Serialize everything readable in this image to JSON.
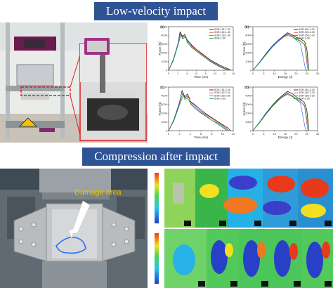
{
  "sections": {
    "impact_title": "Low-velocity impact",
    "cai_title": "Compression after impact"
  },
  "photo_labels": {
    "damage_area": "Damage area"
  },
  "colors": {
    "banner": "#2f5496",
    "arrow": "#ffffff",
    "callout": "#e11d1d",
    "damage_outline": "#2b6cff",
    "series": [
      "#000000",
      "#ff2b2b",
      "#2f6bff",
      "#1fa21f"
    ]
  },
  "chart_data": [
    {
      "panel": "(a)",
      "type": "line",
      "xlabel": "Time (ms)",
      "ylabel": "Force (N)",
      "xlim": [
        0,
        14
      ],
      "ylim": [
        0,
        5000
      ],
      "xticks": [
        "0",
        "2",
        "4",
        "6",
        "8",
        "10",
        "12",
        "14"
      ],
      "yticks": [
        "0",
        "1000",
        "2000",
        "3000",
        "4000",
        "5000"
      ],
      "legend": [
        "SGR-151-1-30",
        "SGR-152-1-30",
        "SGR-153-1-30",
        "SGR-1-30"
      ],
      "series": [
        {
          "x": [
            0,
            1,
            2,
            2.5,
            3,
            3.5,
            4,
            5,
            6,
            7,
            8,
            9,
            10,
            11,
            12,
            13,
            13.5
          ],
          "y": [
            0,
            1200,
            3000,
            4400,
            3900,
            4100,
            3500,
            2900,
            2400,
            2000,
            1600,
            1200,
            900,
            600,
            350,
            150,
            0
          ]
        },
        {
          "x": [
            0,
            1,
            2,
            2.6,
            3,
            3.6,
            4,
            5,
            6,
            7,
            8,
            9,
            10,
            11,
            12,
            13.3
          ],
          "y": [
            0,
            1100,
            2900,
            4200,
            3700,
            3900,
            3300,
            2800,
            2300,
            1900,
            1500,
            1100,
            800,
            500,
            250,
            0
          ]
        },
        {
          "x": [
            0,
            1,
            2,
            2.4,
            3,
            3.4,
            4,
            5,
            6,
            7,
            8,
            9,
            10,
            11,
            12.8
          ],
          "y": [
            0,
            1150,
            2950,
            4300,
            3800,
            4000,
            3400,
            2700,
            2200,
            1800,
            1400,
            1000,
            700,
            400,
            0
          ]
        },
        {
          "x": [
            0,
            1,
            2,
            2.7,
            3,
            3.8,
            4,
            5,
            6,
            7,
            8,
            9,
            10,
            11,
            12,
            13
          ],
          "y": [
            0,
            1050,
            2800,
            4100,
            3600,
            3850,
            3200,
            2600,
            2200,
            1800,
            1400,
            1050,
            750,
            450,
            200,
            0
          ]
        }
      ]
    },
    {
      "panel": "(b)",
      "type": "line",
      "xlabel": "Energy (J)",
      "ylabel": "Force (N)",
      "xlim": [
        0,
        30
      ],
      "ylim": [
        0,
        5000
      ],
      "xticks": [
        "0",
        "5",
        "10",
        "15",
        "20",
        "25",
        "30"
      ],
      "yticks": [
        "0",
        "1000",
        "2000",
        "3000",
        "4000",
        "5000"
      ],
      "legend": [
        "SGR-151-1-30",
        "SGR-152-1-30",
        "SGR-153-1-30",
        "SGR-1-30"
      ],
      "series": [
        {
          "x": [
            0,
            3,
            6,
            9,
            12,
            14,
            16,
            18,
            20,
            22,
            24,
            25,
            26
          ],
          "y": [
            0,
            900,
            1900,
            2800,
            3500,
            3900,
            4300,
            4100,
            3800,
            3600,
            3300,
            2500,
            0
          ]
        },
        {
          "x": [
            0,
            3,
            6,
            9,
            12,
            14,
            16,
            18,
            20,
            22,
            24,
            25.5
          ],
          "y": [
            0,
            850,
            1800,
            2700,
            3400,
            3800,
            4100,
            4000,
            3600,
            3400,
            2900,
            0
          ]
        },
        {
          "x": [
            0,
            3,
            6,
            9,
            12,
            14,
            16,
            18,
            20,
            22,
            24.5
          ],
          "y": [
            0,
            880,
            1850,
            2750,
            3450,
            3850,
            4200,
            3900,
            3500,
            3100,
            0
          ]
        },
        {
          "x": [
            0,
            3,
            6,
            9,
            12,
            14,
            16,
            18,
            20,
            22,
            24,
            26
          ],
          "y": [
            0,
            820,
            1750,
            2650,
            3350,
            3750,
            4000,
            3850,
            3550,
            3350,
            3000,
            0
          ]
        }
      ]
    },
    {
      "panel": "(c)",
      "type": "line",
      "xlabel": "Time (ms)",
      "ylabel": "Force (N)",
      "xlim": [
        0,
        12
      ],
      "ylim": [
        0,
        5000
      ],
      "xticks": [
        "0",
        "2",
        "4",
        "6",
        "8",
        "10",
        "12"
      ],
      "yticks": [
        "0",
        "1000",
        "2000",
        "3000",
        "4000",
        "5000"
      ],
      "legend": [
        "SGR-151-2-30",
        "SGR-152-2-30",
        "SGR-153-2-30",
        "SGR-2-30"
      ],
      "series": [
        {
          "x": [
            0,
            1,
            2,
            2.5,
            3,
            3.5,
            4,
            5,
            6,
            7,
            8,
            9,
            10,
            11,
            11.5
          ],
          "y": [
            0,
            1300,
            3200,
            4600,
            3900,
            4200,
            3400,
            2900,
            2400,
            1900,
            1500,
            1100,
            700,
            300,
            0
          ]
        },
        {
          "x": [
            0,
            1,
            2,
            2.6,
            3,
            3.7,
            4,
            5,
            6,
            7,
            8,
            9,
            10,
            11.2
          ],
          "y": [
            0,
            1200,
            3000,
            4300,
            3800,
            4000,
            3300,
            2800,
            2200,
            1800,
            1400,
            1000,
            600,
            0
          ]
        },
        {
          "x": [
            0,
            1,
            2,
            2.4,
            3,
            3.4,
            4,
            5,
            6,
            7,
            8,
            9,
            10.8
          ],
          "y": [
            0,
            1250,
            3100,
            4400,
            3700,
            3900,
            3200,
            2600,
            2100,
            1700,
            1200,
            800,
            0
          ]
        },
        {
          "x": [
            0,
            1,
            2,
            2.8,
            3,
            3.9,
            4,
            5,
            6,
            7,
            8,
            9,
            10,
            11
          ],
          "y": [
            0,
            1150,
            2900,
            4200,
            3600,
            3800,
            3100,
            2500,
            2000,
            1600,
            1200,
            900,
            500,
            0
          ]
        }
      ]
    },
    {
      "panel": "(d)",
      "type": "line",
      "xlabel": "Energy (J)",
      "ylabel": "Force (N)",
      "xlim": [
        0,
        30
      ],
      "ylim": [
        0,
        5000
      ],
      "xticks": [
        "0",
        "5",
        "10",
        "15",
        "20",
        "25",
        "30"
      ],
      "yticks": [
        "0",
        "1000",
        "2000",
        "3000",
        "4000",
        "5000"
      ],
      "legend": [
        "SGR-151-2-30",
        "SGR-152-2-30",
        "SGR-153-2-30",
        "SGR-2-30"
      ],
      "series": [
        {
          "x": [
            0,
            3,
            6,
            9,
            12,
            14,
            16,
            18,
            20,
            22,
            24,
            25,
            26
          ],
          "y": [
            0,
            950,
            2000,
            2900,
            3700,
            4100,
            4500,
            4300,
            3900,
            3600,
            3200,
            2400,
            0
          ]
        },
        {
          "x": [
            0,
            3,
            6,
            9,
            12,
            14,
            16,
            18,
            20,
            22,
            24,
            25.5
          ],
          "y": [
            0,
            900,
            1900,
            2800,
            3550,
            3950,
            4250,
            4050,
            3700,
            3400,
            2800,
            0
          ]
        },
        {
          "x": [
            0,
            3,
            6,
            9,
            12,
            14,
            16,
            18,
            20,
            22,
            24.5
          ],
          "y": [
            0,
            920,
            1950,
            2850,
            3600,
            4000,
            4350,
            4000,
            3600,
            3200,
            0
          ]
        },
        {
          "x": [
            0,
            3,
            6,
            9,
            12,
            14,
            16,
            18,
            20,
            22,
            24,
            26
          ],
          "y": [
            0,
            870,
            1850,
            2750,
            3500,
            3900,
            4150,
            3950,
            3650,
            3350,
            2900,
            0
          ]
        }
      ]
    }
  ]
}
